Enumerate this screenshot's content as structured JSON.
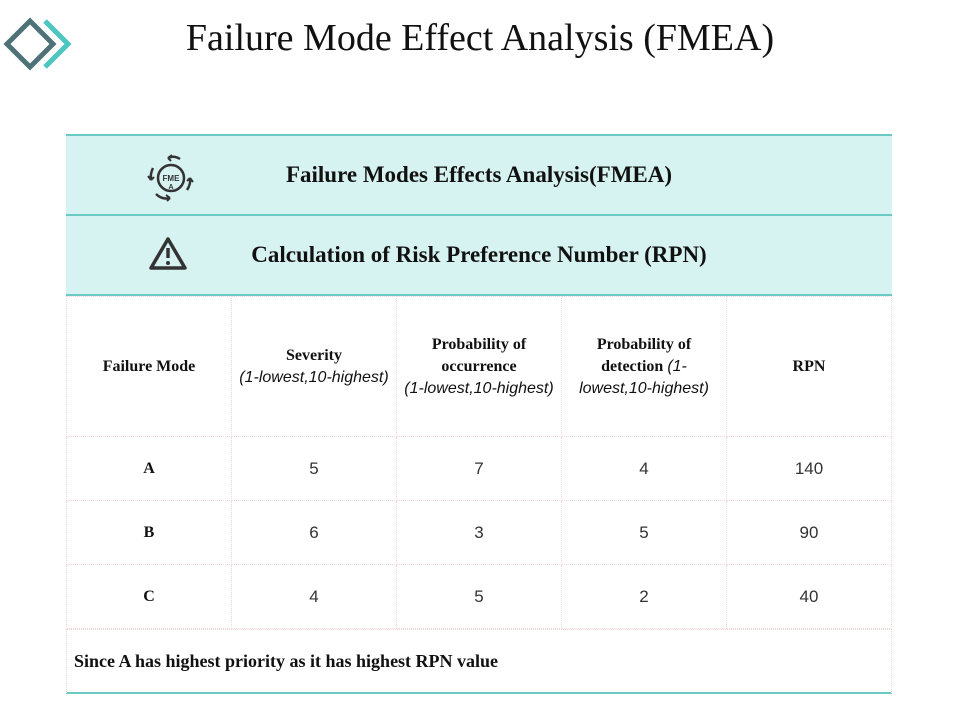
{
  "title": "Failure Mode Effect Analysis (FMEA)",
  "colors": {
    "header_bg": "#d7f3f1",
    "accent": "#6ccac4",
    "logo_dark": "#4e7278",
    "logo_light": "#4cc7c0"
  },
  "header": {
    "row1": {
      "icon": "fmea-cycle-icon",
      "icon_text": "FMEA",
      "label": "Failure Modes Effects Analysis(FMEA)"
    },
    "row2": {
      "icon": "warning-icon",
      "label": "Calculation of Risk Preference Number (RPN)"
    }
  },
  "columns": [
    {
      "title": "Failure Mode",
      "sub": ""
    },
    {
      "title": "Severity",
      "sub": "(1-lowest,10-highest)"
    },
    {
      "title": "Probability of occurrence",
      "sub": "(1-lowest,10-highest)"
    },
    {
      "title": "Probability of detection",
      "sub": "(1-lowest,10-highest)"
    },
    {
      "title": "RPN",
      "sub": ""
    }
  ],
  "rows": [
    [
      "A",
      "5",
      "7",
      "4",
      "140"
    ],
    [
      "B",
      "6",
      "3",
      "5",
      "90"
    ],
    [
      "C",
      "4",
      "5",
      "2",
      "40"
    ]
  ],
  "footer": "Since A has highest priority as it has highest RPN value"
}
